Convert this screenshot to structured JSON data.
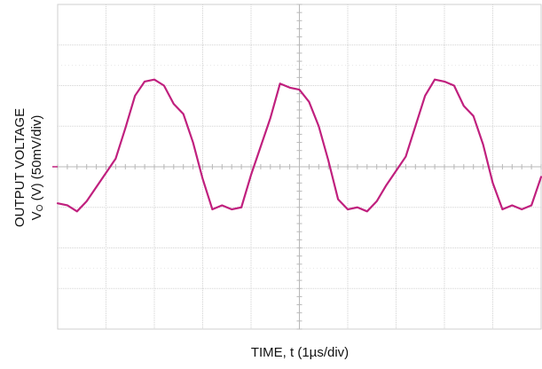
{
  "chart_data": {
    "type": "line",
    "title": "",
    "xlabel": "TIME, t (1µs/div)",
    "ylabel_line1": "OUTPUT VOLTAGE",
    "ylabel_line2_prefix": "V",
    "ylabel_line2_subscript": "O",
    "ylabel_line2_suffix": " (V) (50mV/div)",
    "x_divisions": 10,
    "y_divisions": 8,
    "xlim_div": [
      0,
      10
    ],
    "ylim_div": [
      -4,
      4
    ],
    "grid": true,
    "series": [
      {
        "color": "#c0207e",
        "x": [
          0.0,
          0.2,
          0.4,
          0.6,
          0.8,
          1.0,
          1.2,
          1.4,
          1.6,
          1.8,
          2.0,
          2.2,
          2.4,
          2.6,
          2.8,
          3.0,
          3.2,
          3.4,
          3.6,
          3.8,
          4.0,
          4.2,
          4.4,
          4.6,
          4.8,
          5.0,
          5.2,
          5.4,
          5.6,
          5.8,
          6.0,
          6.2,
          6.4,
          6.6,
          6.8,
          7.0,
          7.2,
          7.4,
          7.6,
          7.8,
          8.0,
          8.2,
          8.4,
          8.6,
          8.8,
          9.0,
          9.2,
          9.4,
          9.6,
          9.8,
          10.0
        ],
        "y": [
          -0.9,
          -0.95,
          -1.1,
          -0.85,
          -0.5,
          -0.15,
          0.2,
          0.95,
          1.75,
          2.1,
          2.15,
          2.0,
          1.55,
          1.3,
          0.6,
          -0.3,
          -1.05,
          -0.95,
          -1.05,
          -1.0,
          -0.2,
          0.5,
          1.2,
          2.05,
          1.95,
          1.9,
          1.6,
          1.0,
          0.15,
          -0.8,
          -1.05,
          -1.0,
          -1.1,
          -0.85,
          -0.45,
          -0.1,
          0.25,
          1.0,
          1.75,
          2.15,
          2.1,
          2.0,
          1.5,
          1.25,
          0.55,
          -0.4,
          -1.05,
          -0.95,
          -1.05,
          -0.95,
          -0.25
        ]
      }
    ]
  },
  "colors": {
    "trace": "#c0207e",
    "grid": "#d2d2d2",
    "frame": "#cfcfcf",
    "center_axis": "#b8b8b8"
  }
}
